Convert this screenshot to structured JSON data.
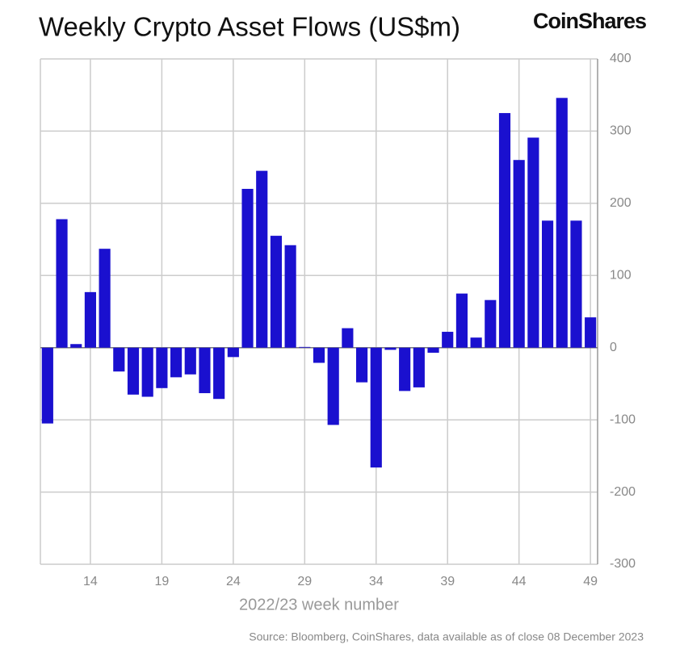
{
  "chart_data": {
    "type": "bar",
    "title": "Weekly Crypto Asset Flows (US$m)",
    "brand": "CoinShares",
    "x_label": "2022/23 week number",
    "source": "Source: Bloomberg, CoinShares, data available as of close 08 December 2023",
    "categories": [
      null,
      null,
      null,
      "14",
      null,
      null,
      null,
      null,
      "19",
      null,
      null,
      null,
      null,
      "24",
      null,
      null,
      null,
      null,
      "29",
      null,
      null,
      null,
      null,
      "34",
      null,
      null,
      null,
      null,
      "39",
      null,
      null,
      null,
      null,
      "44",
      null,
      null,
      null,
      null,
      "49"
    ],
    "values": [
      -105,
      178,
      5,
      77,
      137,
      -33,
      -65,
      -68,
      -56,
      -41,
      -37,
      -63,
      -71,
      -13,
      220,
      245,
      155,
      142,
      1,
      -21,
      -107,
      27,
      -48,
      -166,
      -3,
      -60,
      -55,
      -7,
      22,
      75,
      14,
      66,
      325,
      260,
      291,
      176,
      346,
      176,
      42
    ],
    "color": "#1a10cf",
    "ylim": [
      -300,
      400
    ],
    "yticks": [
      -300,
      -200,
      -100,
      0,
      100,
      200,
      300,
      400
    ],
    "grid": true
  }
}
